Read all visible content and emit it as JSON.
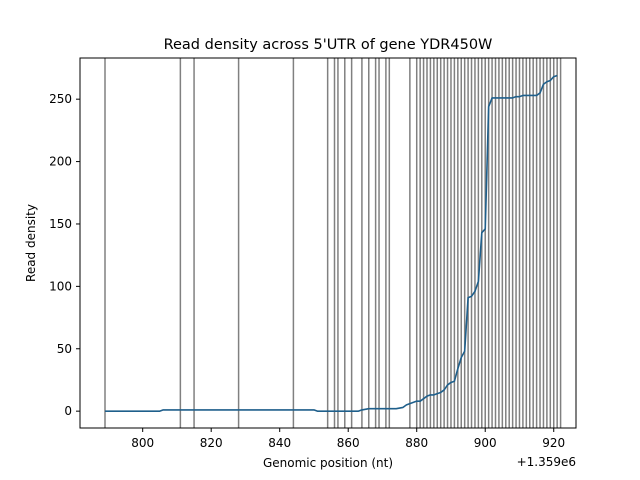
{
  "chart_data": {
    "type": "line",
    "title": "Read density across 5'UTR of gene YDR450W",
    "xlabel": "Genomic position (nt)",
    "ylabel": "Read density",
    "x_offset_label": "+1.359e6",
    "x_ticks": [
      800,
      820,
      840,
      860,
      880,
      900,
      920
    ],
    "y_ticks": [
      0,
      50,
      100,
      150,
      200,
      250
    ],
    "xlim": [
      781.7,
      926.5
    ],
    "ylim": [
      -13.5,
      283
    ],
    "grid": false,
    "line_color": "#1f5f8b",
    "vline_color": "#808080",
    "vertical_lines": [
      789,
      811,
      815,
      828,
      844,
      854,
      856,
      857,
      859,
      861,
      864,
      866,
      868,
      869,
      871,
      872,
      878,
      880,
      881,
      882,
      883,
      884,
      885,
      886,
      887,
      888,
      889,
      890,
      891,
      892,
      893,
      894,
      895,
      896,
      897,
      898,
      899,
      900,
      901,
      902,
      903,
      904,
      905,
      906,
      907,
      908,
      909,
      910,
      911,
      912,
      913,
      914,
      915,
      916,
      917,
      918,
      919,
      920,
      921,
      922
    ],
    "series": [
      {
        "x": [
          789,
          805,
          806,
          811,
          850,
          851,
          863,
          864,
          866,
          871,
          874,
          876,
          877,
          878,
          880,
          881,
          882,
          883,
          884,
          885,
          886,
          887,
          888,
          889,
          890,
          891,
          892,
          893,
          894,
          895,
          896,
          897,
          898,
          899,
          900,
          901,
          902,
          903,
          904,
          905,
          906,
          907,
          908,
          909,
          910,
          911,
          912,
          913,
          914,
          915,
          916,
          917,
          918,
          919,
          920,
          921
        ],
        "y": [
          0,
          0,
          1,
          1,
          1,
          0,
          0,
          1,
          2,
          2,
          2,
          3,
          5,
          6,
          8,
          8,
          10,
          12,
          13,
          13,
          14,
          15,
          17,
          21,
          23,
          24,
          34,
          43,
          48,
          91,
          92,
          96,
          104,
          143,
          146,
          244,
          251,
          251,
          251,
          251,
          251,
          251,
          251,
          252,
          252,
          253,
          253,
          253,
          253,
          253,
          255,
          262,
          264,
          265,
          268,
          269
        ]
      }
    ]
  }
}
